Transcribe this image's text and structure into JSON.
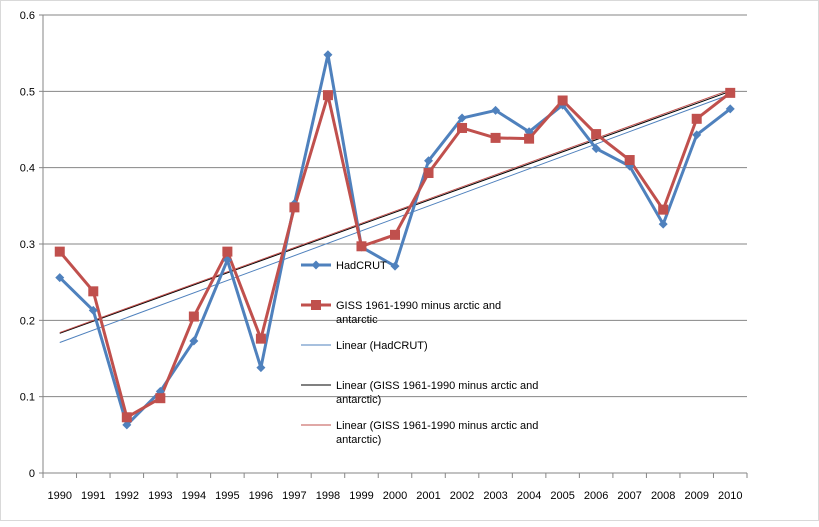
{
  "chart_data": {
    "type": "line",
    "title": "",
    "xlabel": "",
    "ylabel": "",
    "ylim": [
      0,
      0.6
    ],
    "y_ticks": [
      "0",
      "0.1",
      "0.2",
      "0.3",
      "0.4",
      "0.5",
      "0.6"
    ],
    "y_tick_values": [
      0,
      0.1,
      0.2,
      0.3,
      0.4,
      0.5,
      0.6
    ],
    "grid": "horizontal",
    "legend_position": "center (overlapping plot)",
    "categories": [
      "1990",
      "1991",
      "1992",
      "1993",
      "1994",
      "1995",
      "1996",
      "1997",
      "1998",
      "1999",
      "2000",
      "2001",
      "2002",
      "2003",
      "2004",
      "2005",
      "2006",
      "2007",
      "2008",
      "2009",
      "2010"
    ],
    "series": [
      {
        "name": "HadCRUT",
        "color": "#4f81bd",
        "marker": "diamond",
        "values": [
          0.256,
          0.213,
          0.063,
          0.107,
          0.173,
          0.279,
          0.138,
          0.353,
          0.548,
          0.296,
          0.271,
          0.409,
          0.465,
          0.475,
          0.447,
          0.482,
          0.425,
          0.402,
          0.326,
          0.443,
          0.477
        ]
      },
      {
        "name": "GISS 1961-1990 minus arctic and antarctic",
        "color": "#c0504d",
        "marker": "square",
        "values": [
          0.29,
          0.238,
          0.073,
          0.098,
          0.205,
          0.29,
          0.176,
          0.348,
          0.495,
          0.297,
          0.312,
          0.393,
          0.452,
          0.439,
          0.438,
          0.488,
          0.444,
          0.41,
          0.345,
          0.464,
          0.498
        ]
      }
    ],
    "trendlines": [
      {
        "name": "Linear (HadCRUT)",
        "color": "#4f81bd",
        "start": 0.171,
        "end": 0.496
      },
      {
        "name": "Linear (GISS 1961-1990 minus arctic and antarctic)",
        "color": "#000000",
        "start": 0.183,
        "end": 0.5
      },
      {
        "name": "Linear (GISS 1961-1990 minus arctic and antarctic)",
        "color": "#c0504d",
        "start": 0.184,
        "end": 0.502
      }
    ]
  },
  "legend": {
    "items": [
      {
        "lines": [
          "HadCRUT"
        ],
        "color": "#4f81bd",
        "kind": "series-diamond"
      },
      {
        "lines": [
          "GISS 1961-1990 minus arctic and",
          "antarctic"
        ],
        "color": "#c0504d",
        "kind": "series-square"
      },
      {
        "lines": [
          "Linear (HadCRUT)"
        ],
        "color": "#4f81bd",
        "kind": "trend"
      },
      {
        "lines": [
          "Linear (GISS 1961-1990 minus arctic and",
          "antarctic)"
        ],
        "color": "#000000",
        "kind": "trend"
      },
      {
        "lines": [
          "Linear (GISS 1961-1990 minus arctic and",
          "antarctic)"
        ],
        "color": "#c0504d",
        "kind": "trend"
      }
    ]
  }
}
